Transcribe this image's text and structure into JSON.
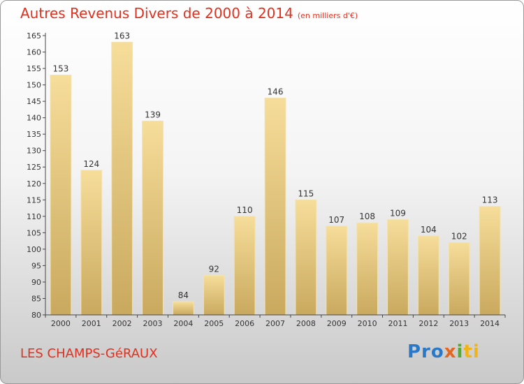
{
  "title": "Autres Revenus Divers de 2000 à 2014",
  "unit": "(en milliers d'€)",
  "commune": "LES CHAMPS-GéRAUX",
  "logo": {
    "p1": "Pro",
    "p2": "x",
    "p3": "i",
    "p4": "ti"
  },
  "colors": {
    "title": "#e0301e",
    "bar_top": "#f6dd9a",
    "bar_bottom": "#c9a95e",
    "axis": "#333333"
  },
  "chart_data": {
    "type": "bar",
    "title": "Autres Revenus Divers de 2000 à 2014",
    "subtitle": "(en milliers d'€)",
    "categories": [
      "2000",
      "2001",
      "2002",
      "2003",
      "2004",
      "2005",
      "2006",
      "2007",
      "2008",
      "2009",
      "2010",
      "2011",
      "2012",
      "2013",
      "2014"
    ],
    "values": [
      153,
      124,
      163,
      139,
      84,
      92,
      110,
      146,
      115,
      107,
      108,
      109,
      104,
      102,
      113
    ],
    "ylim": [
      80,
      165
    ],
    "yticks": [
      80,
      85,
      90,
      95,
      100,
      105,
      110,
      115,
      120,
      125,
      130,
      135,
      140,
      145,
      150,
      155,
      160,
      165
    ],
    "xlabel": "",
    "ylabel": "",
    "grid": false,
    "data_labels": true
  }
}
